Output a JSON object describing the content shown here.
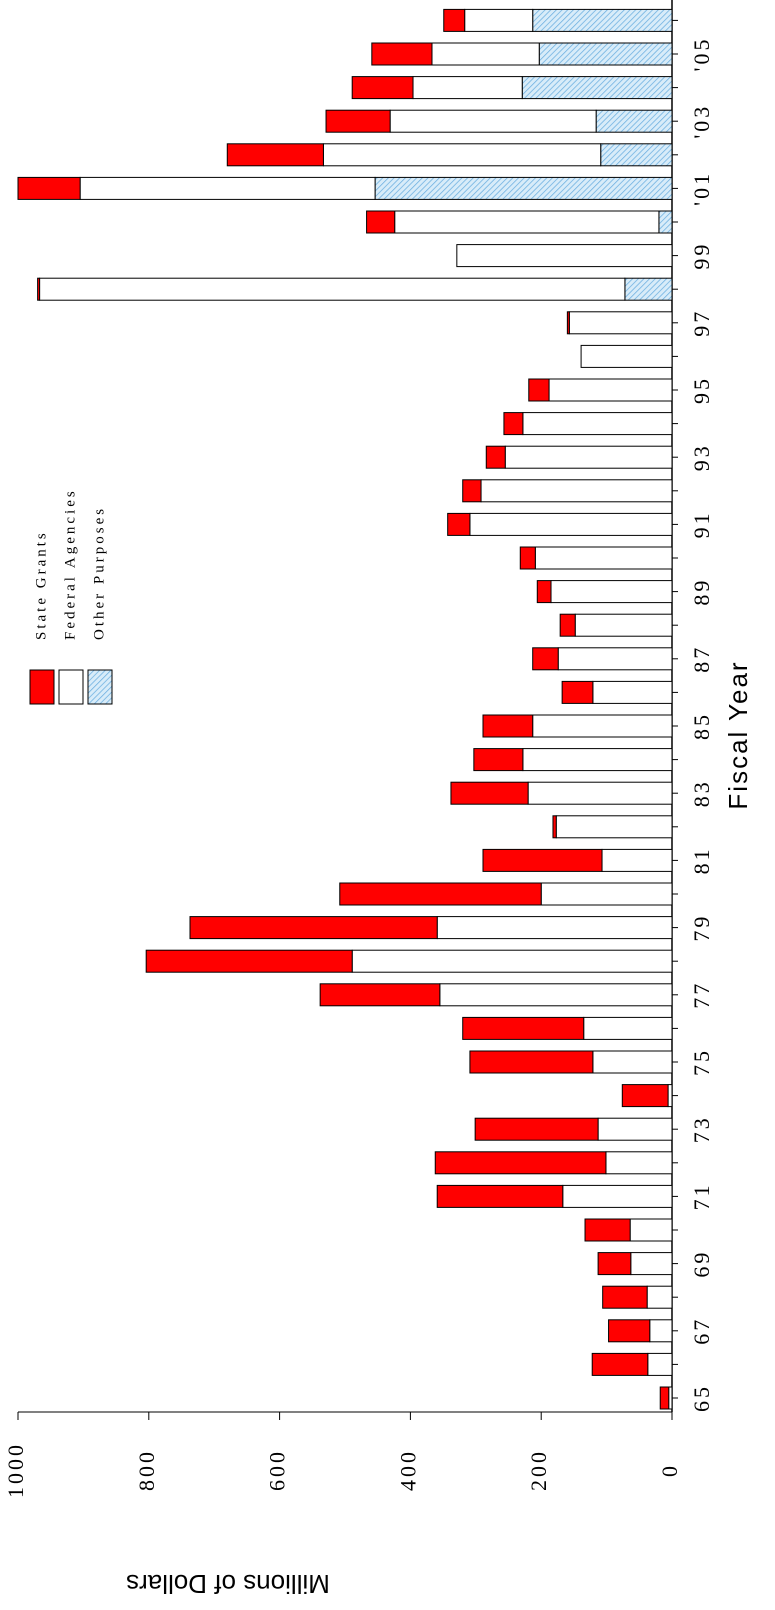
{
  "chart_data": {
    "type": "stacked-bar",
    "x_label": "Fiscal Year",
    "y_label": "Millions of Dollars",
    "categories": [
      "65",
      null,
      "67",
      null,
      "69",
      null,
      "71",
      null,
      "73",
      null,
      "75",
      null,
      "77",
      null,
      "79",
      null,
      "81",
      null,
      "83",
      null,
      "85",
      null,
      "87",
      null,
      "89",
      null,
      "91",
      null,
      "93",
      null,
      "95",
      null,
      "97",
      null,
      "99",
      null,
      "'01",
      null,
      "'03",
      null,
      "'05",
      null
    ],
    "series": [
      {
        "name": "State Grants",
        "color": "#ff0000",
        "values": [
          13,
          85,
          63,
          68,
          50,
          69,
          192,
          261,
          188,
          70,
          188,
          185,
          183,
          315,
          378,
          308,
          182,
          5,
          118,
          75,
          76,
          47,
          39,
          23,
          21,
          23,
          34,
          28,
          29,
          29,
          31,
          0,
          3,
          3,
          0,
          43,
          95,
          147,
          98,
          93,
          92,
          32
        ]
      },
      {
        "name": "Federal Agencies",
        "color": "#ffffff",
        "values": [
          5,
          37,
          34,
          38,
          63,
          64,
          167,
          101,
          113,
          6,
          121,
          135,
          355,
          489,
          359,
          200,
          107,
          177,
          220,
          228,
          213,
          121,
          174,
          148,
          185,
          209,
          309,
          292,
          255,
          228,
          188,
          139,
          157,
          895,
          329,
          404,
          451,
          424,
          315,
          167,
          164,
          104
        ]
      },
      {
        "name": "Other Purposes",
        "color": "#8ec5ea",
        "pattern": "hatch",
        "values": [
          0,
          0,
          0,
          0,
          0,
          0,
          0,
          0,
          0,
          0,
          0,
          0,
          0,
          0,
          0,
          0,
          0,
          0,
          0,
          0,
          0,
          0,
          0,
          0,
          0,
          0,
          0,
          0,
          0,
          0,
          0,
          0,
          0,
          72,
          0,
          20,
          454,
          109,
          116,
          229,
          203,
          213
        ]
      }
    ],
    "ylim": [
      0,
      1000
    ],
    "yticks": [
      0,
      200,
      400,
      600,
      800,
      1000
    ]
  }
}
